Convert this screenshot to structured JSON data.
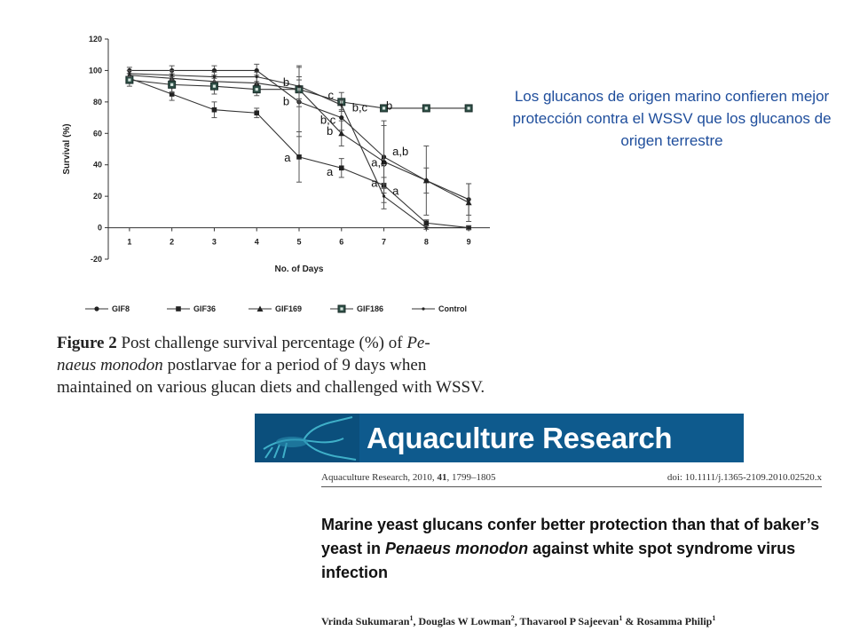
{
  "chart_data": {
    "type": "line",
    "title": "",
    "xlabel": "No. of Days",
    "ylabel": "Survival (%)",
    "x": [
      1,
      2,
      3,
      4,
      5,
      6,
      7,
      8,
      9
    ],
    "xlim": [
      0.5,
      9.5
    ],
    "ylim": [
      -20,
      120
    ],
    "yticks": [
      -20,
      0,
      20,
      40,
      60,
      80,
      100,
      120
    ],
    "grid": false,
    "legend_position": "bottom",
    "series": [
      {
        "name": "GIF8",
        "marker": "circle",
        "values": [
          100,
          100,
          100,
          100,
          80,
          70,
          45,
          30,
          18
        ],
        "err": [
          2,
          3,
          3,
          4,
          22,
          8,
          20,
          22,
          10
        ]
      },
      {
        "name": "GIF36",
        "marker": "square",
        "values": [
          95,
          85,
          75,
          73,
          45,
          38,
          27,
          3,
          0
        ],
        "err": [
          3,
          4,
          5,
          3,
          16,
          6,
          5,
          2,
          1
        ]
      },
      {
        "name": "GIF169",
        "marker": "triangle",
        "values": [
          97,
          95,
          93,
          92,
          88,
          60,
          42,
          30,
          16
        ],
        "err": [
          3,
          3,
          4,
          5,
          8,
          8,
          26,
          8,
          12
        ]
      },
      {
        "name": "GIF186",
        "marker": "square-open",
        "values": [
          94,
          91,
          90,
          88,
          88,
          80,
          76,
          76,
          76
        ],
        "err": [
          4,
          5,
          5,
          4,
          6,
          6,
          2,
          1,
          1
        ]
      },
      {
        "name": "Control",
        "marker": "dot",
        "values": [
          98,
          97,
          96,
          96,
          90,
          78,
          20,
          0,
          0
        ],
        "err": [
          2,
          3,
          3,
          3,
          13,
          3,
          8,
          1,
          1
        ]
      }
    ],
    "annotations": [
      {
        "text": "b",
        "x": 4.62,
        "y": 90
      },
      {
        "text": "c",
        "x": 5.68,
        "y": 82
      },
      {
        "text": "b",
        "x": 4.62,
        "y": 78
      },
      {
        "text": "b,c",
        "x": 6.25,
        "y": 74
      },
      {
        "text": "b",
        "x": 7.05,
        "y": 75
      },
      {
        "text": "b,c",
        "x": 5.5,
        "y": 66
      },
      {
        "text": "b",
        "x": 5.65,
        "y": 59
      },
      {
        "text": "a,b",
        "x": 7.2,
        "y": 46
      },
      {
        "text": "a",
        "x": 4.65,
        "y": 42
      },
      {
        "text": "a,b",
        "x": 6.7,
        "y": 39
      },
      {
        "text": "a",
        "x": 5.65,
        "y": 33
      },
      {
        "text": "a",
        "x": 6.7,
        "y": 26
      },
      {
        "text": "a",
        "x": 7.2,
        "y": 21
      }
    ]
  },
  "caption": {
    "figure_label": "Figure 2",
    "text": "Post challenge survival percentage (%) of",
    "species": "Penaeus monodon",
    "species_line1": "Pe-",
    "species_line2": "naeus monodon",
    "rest": "postlarvae for a period of 9 days when maintained on various glucan diets and challenged with WSSV."
  },
  "note": {
    "text": "Los glucanos de origen marino confieren mejor protección contra el WSSV que los glucanos de origen terrestre",
    "color": "#1f4e9c"
  },
  "journal": {
    "name": "Aquaculture Research",
    "banner_color": "#0e5a8d",
    "citation": "Aquaculture Research, 2010, ",
    "volume": "41",
    "pages": ", 1799–1805",
    "doi": "doi: 10.1111/j.1365-2109.2010.02520.x"
  },
  "paper": {
    "title_part1": "Marine yeast glucans confer better protection than that of baker’s yeast in ",
    "title_species": "Penaeus monodon",
    "title_part2": " against white spot syndrome virus infection",
    "authors": [
      {
        "name": "Vrinda Sukumaran",
        "aff": "1"
      },
      {
        "name": "Douglas W Lowman",
        "aff": "2"
      },
      {
        "name": "Thavarool P Sajeevan",
        "aff": "1"
      },
      {
        "name": "Rosamma Philip",
        "aff": "1"
      }
    ]
  }
}
